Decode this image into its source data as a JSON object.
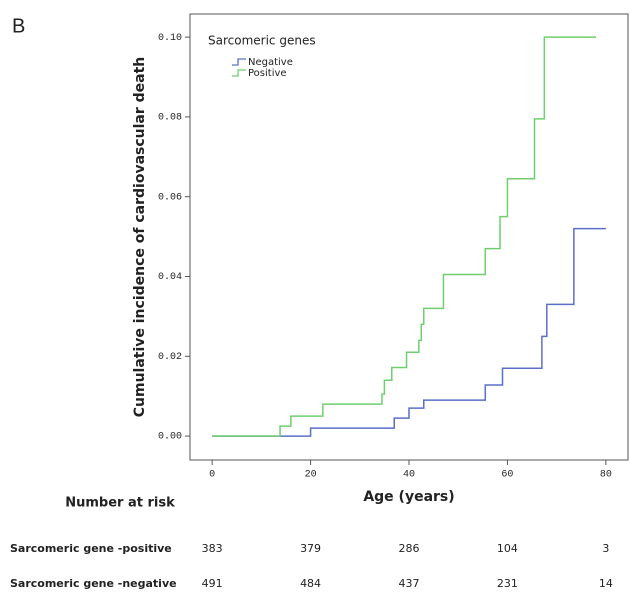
{
  "panel_label": "B",
  "chart_data": {
    "type": "step",
    "ylabel": "Cumulative incidence of cardiovascular death",
    "xlabel": "Age (years)",
    "legend_title": "Sarcomeric genes",
    "legend": "upper left",
    "xlim": [
      -4.5,
      84.5
    ],
    "ylim": [
      -0.006,
      0.1058
    ],
    "xticks": [
      0,
      20,
      40,
      60,
      80
    ],
    "yticks": [
      {
        "value": 0,
        "label": "0.00"
      },
      {
        "value": 0.02,
        "label": "0.02"
      },
      {
        "value": 0.04,
        "label": "0.04"
      },
      {
        "value": 0.06,
        "label": "0.06"
      },
      {
        "value": 0.08,
        "label": "0.08"
      },
      {
        "value": 0.1,
        "label": "0.10"
      }
    ],
    "series": [
      {
        "name": "Negative",
        "color": "#5a6fc9",
        "x": [
          0,
          20,
          37,
          40,
          43,
          55.5,
          59,
          67,
          68,
          73.5,
          80
        ],
        "values": [
          0,
          0.002,
          0.0045,
          0.007,
          0.009,
          0.0128,
          0.017,
          0.025,
          0.033,
          0.052,
          0.052
        ]
      },
      {
        "name": "Positive",
        "color": "#6fcf6f",
        "x": [
          0,
          13.8,
          16,
          22.5,
          34.5,
          35,
          36.5,
          39.5,
          42,
          42.5,
          43,
          47,
          55.5,
          58.5,
          60,
          65.5,
          67.5,
          78
        ],
        "values": [
          0,
          0.0025,
          0.005,
          0.008,
          0.0105,
          0.014,
          0.0172,
          0.021,
          0.024,
          0.028,
          0.032,
          0.0405,
          0.047,
          0.055,
          0.0645,
          0.0795,
          0.1,
          0.1
        ]
      }
    ],
    "risk_table": {
      "title": "Number at risk",
      "rows": [
        {
          "label": "Sarcomeric gene -positive",
          "values": [
            383,
            379,
            286,
            104,
            3
          ]
        },
        {
          "label": "Sarcomeric gene -negative",
          "values": [
            491,
            484,
            437,
            231,
            14
          ]
        }
      ]
    }
  }
}
